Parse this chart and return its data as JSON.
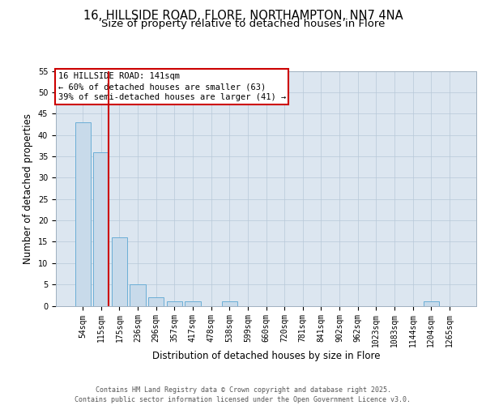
{
  "title_line1": "16, HILLSIDE ROAD, FLORE, NORTHAMPTON, NN7 4NA",
  "title_line2": "Size of property relative to detached houses in Flore",
  "xlabel": "Distribution of detached houses by size in Flore",
  "ylabel": "Number of detached properties",
  "categories": [
    "54sqm",
    "115sqm",
    "175sqm",
    "236sqm",
    "296sqm",
    "357sqm",
    "417sqm",
    "478sqm",
    "538sqm",
    "599sqm",
    "660sqm",
    "720sqm",
    "781sqm",
    "841sqm",
    "902sqm",
    "962sqm",
    "1023sqm",
    "1083sqm",
    "1144sqm",
    "1204sqm",
    "1265sqm"
  ],
  "values": [
    43,
    36,
    16,
    5,
    2,
    1,
    1,
    0,
    1,
    0,
    0,
    0,
    0,
    0,
    0,
    0,
    0,
    0,
    0,
    1,
    0
  ],
  "bar_color": "#c8daea",
  "bar_edge_color": "#6baed6",
  "vline_color": "#cc0000",
  "annotation_text": "16 HILLSIDE ROAD: 141sqm\n← 60% of detached houses are smaller (63)\n39% of semi-detached houses are larger (41) →",
  "annotation_box_color": "#ffffff",
  "annotation_box_edge": "#cc0000",
  "ylim": [
    0,
    55
  ],
  "yticks": [
    0,
    5,
    10,
    15,
    20,
    25,
    30,
    35,
    40,
    45,
    50,
    55
  ],
  "background_color": "#dce6f0",
  "footer_line1": "Contains HM Land Registry data © Crown copyright and database right 2025.",
  "footer_line2": "Contains public sector information licensed under the Open Government Licence v3.0.",
  "title_fontsize": 10.5,
  "subtitle_fontsize": 9.5,
  "axis_label_fontsize": 8.5,
  "tick_fontsize": 7,
  "annotation_fontsize": 7.5,
  "footer_fontsize": 6
}
